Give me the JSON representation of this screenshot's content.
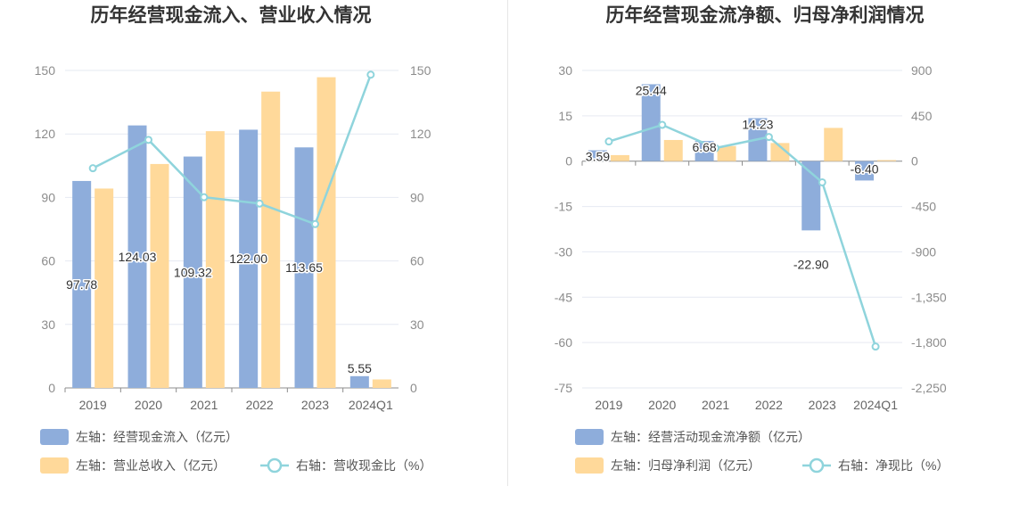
{
  "charts": [
    {
      "title": "历年经营现金流入、营业收入情况",
      "categories": [
        "2019",
        "2020",
        "2021",
        "2022",
        "2023",
        "2024Q1"
      ],
      "left_axis": {
        "min": 0,
        "max": 150,
        "ticks": [
          "0",
          "30",
          "60",
          "90",
          "120",
          "150"
        ]
      },
      "right_axis": {
        "min": 0,
        "max": 150,
        "ticks": [
          "0",
          "30",
          "60",
          "90",
          "120",
          "150"
        ]
      },
      "bar_series": [
        {
          "name": "左轴：经营现金流入（亿元）",
          "color": "#8eaddb",
          "values": [
            97.78,
            124.03,
            109.32,
            122.0,
            113.65,
            5.55
          ],
          "labels": [
            "97.78",
            "124.03",
            "109.32",
            "122.00",
            "113.65",
            "5.55"
          ]
        },
        {
          "name": "左轴：营业总收入（亿元）",
          "color": "#ffd99a",
          "values": [
            94.2,
            105.8,
            121.3,
            140.0,
            146.8,
            4.0
          ]
        }
      ],
      "line_series": {
        "name": "右轴：营收现金比（%）",
        "color": "#8fd4dc",
        "values": [
          103.8,
          117.2,
          90.1,
          87.1,
          77.4,
          148.0
        ]
      }
    },
    {
      "title": "历年经营现金流净额、归母净利润情况",
      "categories": [
        "2019",
        "2020",
        "2021",
        "2022",
        "2023",
        "2024Q1"
      ],
      "left_axis": {
        "min": -75,
        "max": 30,
        "ticks": [
          "-75",
          "-60",
          "-45",
          "-30",
          "-15",
          "0",
          "15",
          "30"
        ]
      },
      "right_axis": {
        "min": -2250,
        "max": 900,
        "ticks": [
          "-2,250",
          "-1,800",
          "-1,350",
          "-900",
          "-450",
          "0",
          "450",
          "900"
        ]
      },
      "bar_series": [
        {
          "name": "左轴：经营活动现金流净额（亿元）",
          "color": "#8eaddb",
          "values": [
            3.59,
            25.44,
            6.68,
            14.23,
            -22.9,
            -6.4
          ],
          "labels": [
            "3.59",
            "25.44",
            "6.68",
            "14.23",
            "-22.90",
            "-6.40"
          ]
        },
        {
          "name": "左轴：归母净利润（亿元）",
          "color": "#ffd99a",
          "values": [
            2.0,
            7.0,
            5.0,
            6.0,
            11.0,
            0.35
          ]
        }
      ],
      "line_series": {
        "name": "右轴：净现比（%）",
        "color": "#8fd4dc",
        "values": [
          195,
          360,
          130,
          240,
          -210,
          -1840
        ]
      }
    }
  ]
}
